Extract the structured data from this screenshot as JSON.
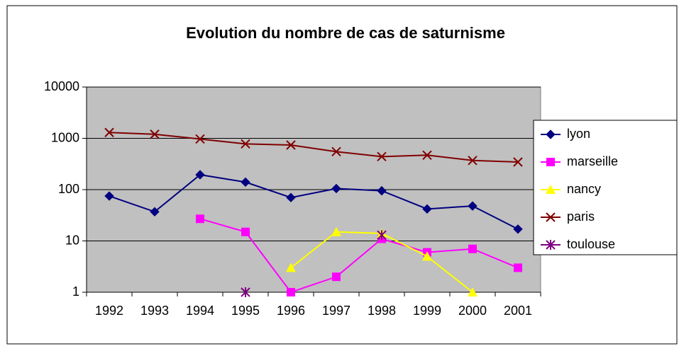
{
  "chart_data": {
    "type": "line",
    "title": "Evolution du nombre de cas de saturnisme",
    "categories": [
      "1992",
      "1993",
      "1994",
      "1995",
      "1996",
      "1997",
      "1998",
      "1999",
      "2000",
      "2001"
    ],
    "series": [
      {
        "name": "lyon",
        "color": "#000080",
        "marker": "diamond",
        "values": [
          75,
          37,
          195,
          140,
          70,
          105,
          95,
          42,
          48,
          17
        ]
      },
      {
        "name": "marseille",
        "color": "#FF00FF",
        "marker": "square",
        "values": [
          null,
          null,
          27,
          15,
          1,
          2,
          11,
          6,
          7,
          3
        ]
      },
      {
        "name": "nancy",
        "color": "#FFFF00",
        "marker": "triangle",
        "values": [
          null,
          null,
          null,
          null,
          3,
          15,
          14,
          5,
          1,
          null
        ]
      },
      {
        "name": "paris",
        "color": "#800000",
        "marker": "x",
        "values": [
          1300,
          1200,
          970,
          780,
          740,
          550,
          440,
          470,
          370,
          345
        ]
      },
      {
        "name": "toulouse",
        "color": "#800080",
        "marker": "star",
        "values": [
          null,
          null,
          null,
          1,
          null,
          null,
          13,
          null,
          null,
          null
        ]
      }
    ],
    "ylim": [
      1,
      10000
    ],
    "yticks": [
      1,
      10,
      100,
      1000,
      10000
    ],
    "log_scale": true,
    "grid": true,
    "plot_background": "#C0C0C0",
    "legend": "right"
  }
}
